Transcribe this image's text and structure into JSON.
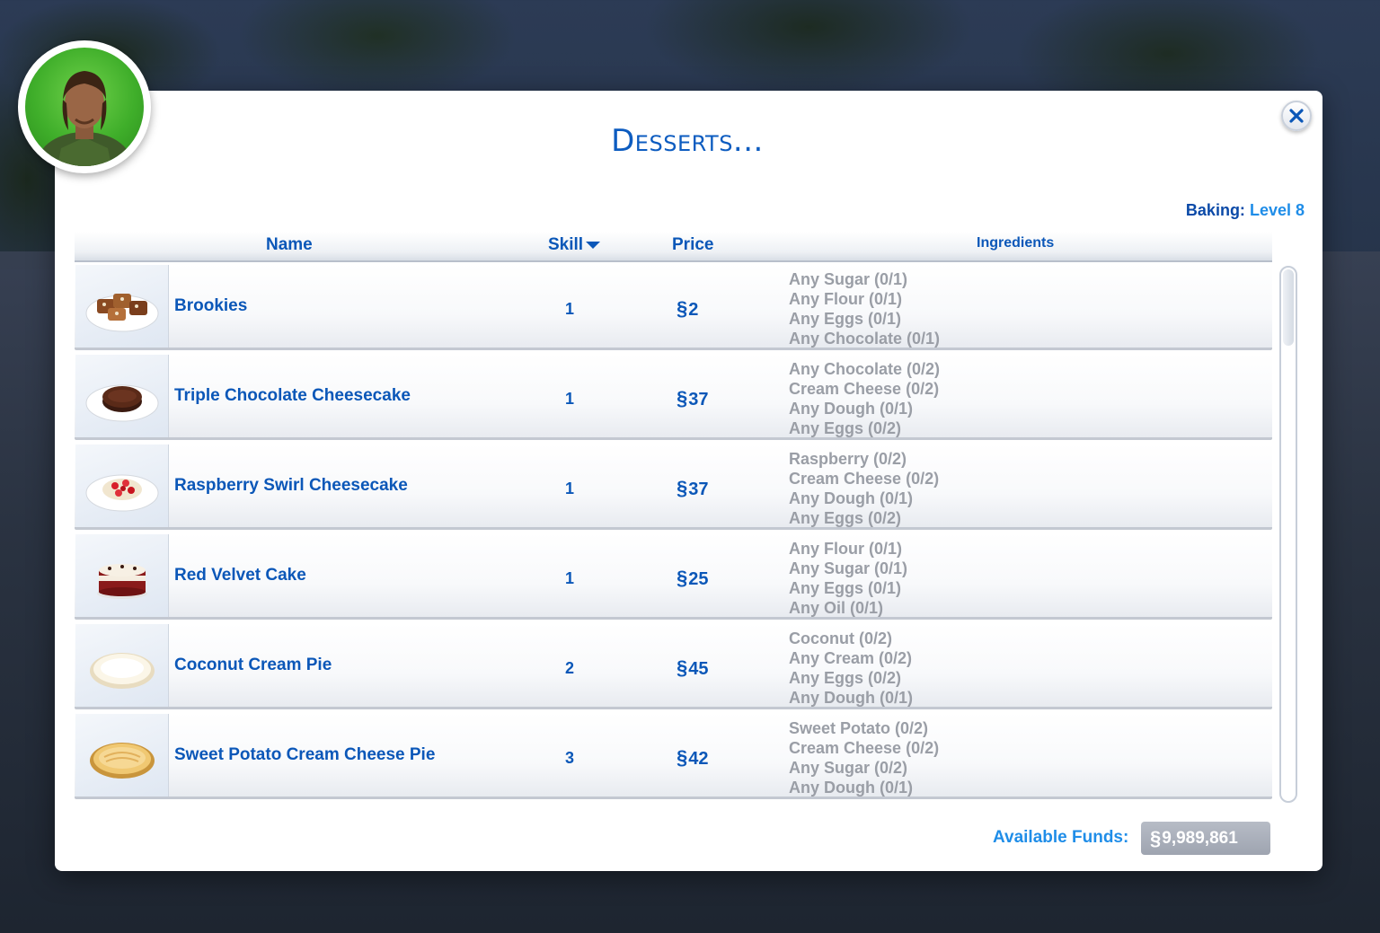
{
  "dialog": {
    "title": "Desserts...",
    "skill": {
      "label": "Baking:",
      "value": "Level 8"
    },
    "columns": {
      "name": "Name",
      "skill": "Skill",
      "price": "Price",
      "ingredients": "Ingredients"
    },
    "currency_symbol": "§",
    "recipes": [
      {
        "name": "Brookies",
        "skill": "1",
        "price": "2",
        "icon": "brookies-icon",
        "ingredients": [
          "Any Sugar (0/1)",
          "Any Flour (0/1)",
          "Any Eggs (0/1)",
          "Any Chocolate (0/1)"
        ]
      },
      {
        "name": "Triple Chocolate Cheesecake",
        "skill": "1",
        "price": "37",
        "icon": "chocolate-cheesecake-icon",
        "ingredients": [
          "Any Chocolate (0/2)",
          "Cream Cheese (0/2)",
          "Any Dough (0/1)",
          "Any Eggs (0/2)"
        ]
      },
      {
        "name": "Raspberry Swirl Cheesecake",
        "skill": "1",
        "price": "37",
        "icon": "raspberry-cheesecake-icon",
        "ingredients": [
          "Raspberry (0/2)",
          "Cream Cheese (0/2)",
          "Any Dough (0/1)",
          "Any Eggs (0/2)"
        ]
      },
      {
        "name": "Red Velvet Cake",
        "skill": "1",
        "price": "25",
        "icon": "red-velvet-cake-icon",
        "ingredients": [
          "Any Flour (0/1)",
          "Any Sugar (0/1)",
          "Any Eggs (0/1)",
          "Any Oil (0/1)"
        ]
      },
      {
        "name": "Coconut Cream Pie",
        "skill": "2",
        "price": "45",
        "icon": "coconut-pie-icon",
        "ingredients": [
          "Coconut (0/2)",
          "Any Cream (0/2)",
          "Any Eggs (0/2)",
          "Any Dough (0/1)"
        ]
      },
      {
        "name": "Sweet Potato Cream Cheese Pie",
        "skill": "3",
        "price": "42",
        "icon": "sweet-potato-pie-icon",
        "ingredients": [
          "Sweet Potato (0/2)",
          "Cream Cheese (0/2)",
          "Any Sugar (0/2)",
          "Any Dough (0/1)"
        ]
      }
    ],
    "funds": {
      "label": "Available Funds:",
      "value": "9,989,861"
    }
  },
  "colors": {
    "accent": "#0b57b8",
    "light_accent": "#1f8de8",
    "muted": "#9a9ea6"
  }
}
